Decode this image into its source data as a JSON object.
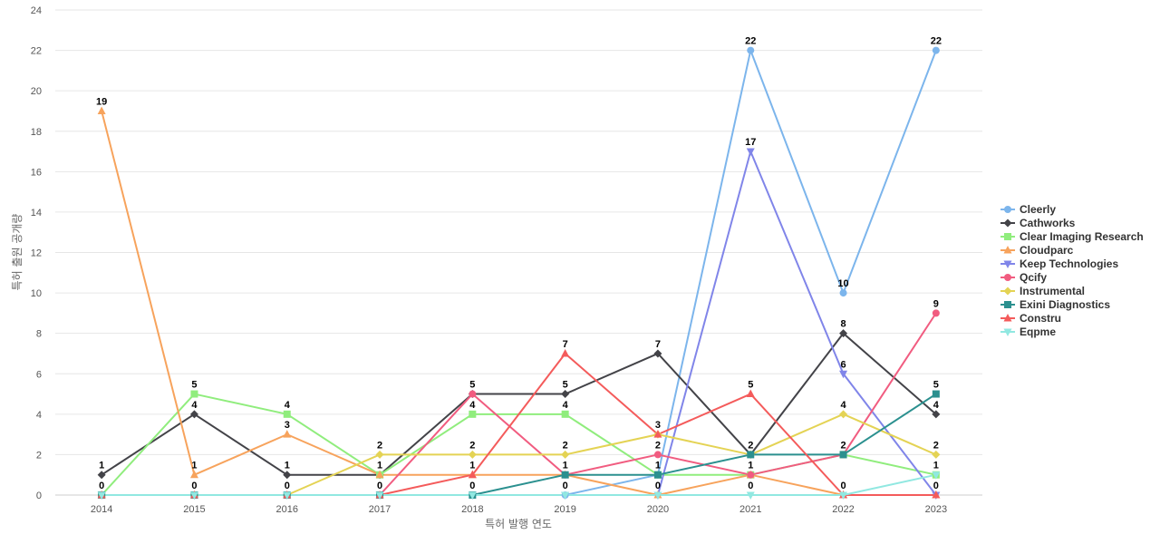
{
  "chart_data": {
    "type": "line",
    "title": "",
    "xlabel": "특허 발행 연도",
    "ylabel": "특허 출원 공개량",
    "ylim": [
      0,
      24
    ],
    "yticks": [
      0,
      2,
      4,
      6,
      8,
      10,
      12,
      14,
      16,
      18,
      20,
      22,
      24
    ],
    "categories": [
      "2014",
      "2015",
      "2016",
      "2017",
      "2018",
      "2019",
      "2020",
      "2021",
      "2022",
      "2023"
    ],
    "grid": "horizontal",
    "legend_position": "right",
    "series": [
      {
        "name": "Cleerly",
        "color": "#7cb5ec",
        "marker": "circle",
        "values": [
          0,
          0,
          0,
          0,
          0,
          0,
          1,
          22,
          10,
          22
        ]
      },
      {
        "name": "Cathworks",
        "color": "#434348",
        "marker": "diamond",
        "values": [
          1,
          4,
          1,
          1,
          5,
          5,
          7,
          2,
          8,
          4
        ]
      },
      {
        "name": "Clear Imaging Research",
        "color": "#90ed7d",
        "marker": "square",
        "values": [
          0,
          5,
          4,
          1,
          4,
          4,
          1,
          1,
          2,
          1
        ]
      },
      {
        "name": "Cloudparc",
        "color": "#f7a35c",
        "marker": "triangle",
        "values": [
          19,
          1,
          3,
          1,
          1,
          1,
          0,
          1,
          0,
          0
        ]
      },
      {
        "name": "Keep Technologies",
        "color": "#8085e9",
        "marker": "triangle-down",
        "values": [
          0,
          0,
          0,
          0,
          0,
          0,
          0,
          17,
          6,
          0
        ]
      },
      {
        "name": "Qcify",
        "color": "#f15c80",
        "marker": "circle",
        "values": [
          0,
          0,
          0,
          0,
          5,
          1,
          2,
          1,
          2,
          9
        ]
      },
      {
        "name": "Instrumental",
        "color": "#e4d354",
        "marker": "diamond",
        "values": [
          0,
          0,
          0,
          2,
          2,
          2,
          3,
          2,
          4,
          2
        ]
      },
      {
        "name": "Exini Diagnostics",
        "color": "#2b908f",
        "marker": "square",
        "values": [
          0,
          0,
          0,
          0,
          0,
          1,
          1,
          2,
          2,
          5
        ]
      },
      {
        "name": "Constru",
        "color": "#f45b5b",
        "marker": "triangle",
        "values": [
          0,
          0,
          0,
          0,
          1,
          7,
          3,
          5,
          0,
          0
        ]
      },
      {
        "name": "Eqpme",
        "color": "#91e8e1",
        "marker": "triangle-down",
        "values": [
          0,
          0,
          0,
          0,
          0,
          0,
          0,
          0,
          0,
          1
        ]
      }
    ],
    "data_labels": [
      {
        "x": "2014",
        "series": "Cloudparc",
        "value": 19
      },
      {
        "x": "2014",
        "series": "Cathworks",
        "value": 1
      },
      {
        "x": "2014",
        "series": "Clear Imaging Research",
        "value": 0
      },
      {
        "x": "2015",
        "series": "Clear Imaging Research",
        "value": 5
      },
      {
        "x": "2015",
        "series": "Cathworks",
        "value": 4
      },
      {
        "x": "2015",
        "series": "Cloudparc",
        "value": 1
      },
      {
        "x": "2015",
        "series": "Cleerly",
        "value": 0
      },
      {
        "x": "2016",
        "series": "Clear Imaging Research",
        "value": 4
      },
      {
        "x": "2016",
        "series": "Cloudparc",
        "value": 3
      },
      {
        "x": "2016",
        "series": "Cathworks",
        "value": 1
      },
      {
        "x": "2016",
        "series": "Cleerly",
        "value": 0
      },
      {
        "x": "2017",
        "series": "Instrumental",
        "value": 2
      },
      {
        "x": "2017",
        "series": "Cathworks",
        "value": 1
      },
      {
        "x": "2017",
        "series": "Cleerly",
        "value": 0
      },
      {
        "x": "2018",
        "series": "Cathworks",
        "value": 5
      },
      {
        "x": "2018",
        "series": "Clear Imaging Research",
        "value": 4
      },
      {
        "x": "2018",
        "series": "Instrumental",
        "value": 2
      },
      {
        "x": "2018",
        "series": "Constru",
        "value": 1
      },
      {
        "x": "2018",
        "series": "Cleerly",
        "value": 0
      },
      {
        "x": "2019",
        "series": "Constru",
        "value": 7
      },
      {
        "x": "2019",
        "series": "Cathworks",
        "value": 5
      },
      {
        "x": "2019",
        "series": "Clear Imaging Research",
        "value": 4
      },
      {
        "x": "2019",
        "series": "Instrumental",
        "value": 2
      },
      {
        "x": "2019",
        "series": "Qcify",
        "value": 1
      },
      {
        "x": "2019",
        "series": "Cleerly",
        "value": 0
      },
      {
        "x": "2020",
        "series": "Cathworks",
        "value": 7
      },
      {
        "x": "2020",
        "series": "Instrumental",
        "value": 3
      },
      {
        "x": "2020",
        "series": "Qcify",
        "value": 2
      },
      {
        "x": "2020",
        "series": "Cleerly",
        "value": 1
      },
      {
        "x": "2020",
        "series": "Cloudparc",
        "value": 0
      },
      {
        "x": "2021",
        "series": "Cleerly",
        "value": 22
      },
      {
        "x": "2021",
        "series": "Keep Technologies",
        "value": 17
      },
      {
        "x": "2021",
        "series": "Constru",
        "value": 5
      },
      {
        "x": "2021",
        "series": "Cathworks",
        "value": 2
      },
      {
        "x": "2021",
        "series": "Cloudparc",
        "value": 1
      },
      {
        "x": "2021",
        "series": "Eqpme",
        "value": 0
      },
      {
        "x": "2022",
        "series": "Cleerly",
        "value": 10
      },
      {
        "x": "2022",
        "series": "Cathworks",
        "value": 8
      },
      {
        "x": "2022",
        "series": "Keep Technologies",
        "value": 6
      },
      {
        "x": "2022",
        "series": "Instrumental",
        "value": 4
      },
      {
        "x": "2022",
        "series": "Exini Diagnostics",
        "value": 2
      },
      {
        "x": "2022",
        "series": "Cloudparc",
        "value": 0
      },
      {
        "x": "2023",
        "series": "Cleerly",
        "value": 22
      },
      {
        "x": "2023",
        "series": "Qcify",
        "value": 9
      },
      {
        "x": "2023",
        "series": "Exini Diagnostics",
        "value": 5
      },
      {
        "x": "2023",
        "series": "Cathworks",
        "value": 4
      },
      {
        "x": "2023",
        "series": "Instrumental",
        "value": 2
      },
      {
        "x": "2023",
        "series": "Eqpme",
        "value": 1
      },
      {
        "x": "2023",
        "series": "Keep Technologies",
        "value": 0
      }
    ]
  }
}
